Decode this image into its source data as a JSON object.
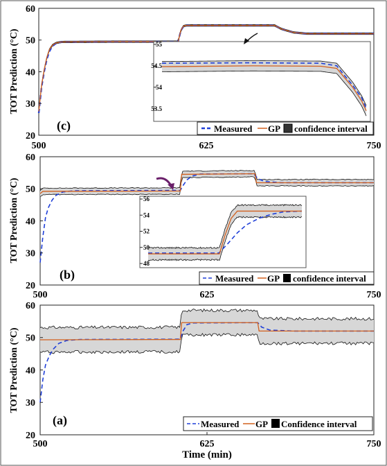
{
  "figure": {
    "border_color": "#555555"
  },
  "colors": {
    "measured": "#1f3fd8",
    "gp": "#d2601e",
    "band": "#d7d7d7",
    "band_edge": "#111111",
    "zoom_arrow_c": "#111111",
    "zoom_arrow_b": "#6a1f6a"
  },
  "chart_data": [
    {
      "type": "line",
      "panel_label": "(c)",
      "ylabel": "TOT Prediction (°C)",
      "xlabel": "",
      "xlim": [
        500,
        750
      ],
      "ylim": [
        20,
        60
      ],
      "xticks": [
        "500",
        "625",
        "750"
      ],
      "yticks": [
        "20",
        "30",
        "40",
        "50",
        "60"
      ],
      "legend": {
        "placement": "bottom-right",
        "entries": [
          "Measured",
          "GP",
          "confidence interval"
        ]
      },
      "grid": false,
      "series": [
        {
          "name": "Measured",
          "style": "dashed",
          "points": [
            [
              500,
              27
            ],
            [
              501,
              31
            ],
            [
              502,
              35
            ],
            [
              504,
              40
            ],
            [
              506,
              44
            ],
            [
              508,
              46.5
            ],
            [
              510,
              48
            ],
            [
              513,
              49
            ],
            [
              517,
              49.4
            ],
            [
              560,
              49.5
            ],
            [
              604,
              49.5
            ],
            [
              606,
              53
            ],
            [
              608,
              54.3
            ],
            [
              610,
              54.6
            ],
            [
              676,
              54.6
            ],
            [
              681,
              53.5
            ],
            [
              690,
              52.4
            ],
            [
              700,
              52
            ],
            [
              750,
              52
            ]
          ]
        },
        {
          "name": "GP",
          "style": "solid",
          "points": [
            [
              500,
              27.5
            ],
            [
              501,
              31.5
            ],
            [
              502,
              35.5
            ],
            [
              504,
              40.5
            ],
            [
              506,
              44.5
            ],
            [
              508,
              47
            ],
            [
              510,
              48.3
            ],
            [
              513,
              49.1
            ],
            [
              517,
              49.4
            ],
            [
              560,
              49.5
            ],
            [
              604,
              49.5
            ],
            [
              606,
              53.1
            ],
            [
              608,
              54.4
            ],
            [
              610,
              54.6
            ],
            [
              676,
              54.6
            ],
            [
              681,
              53.5
            ],
            [
              690,
              52.4
            ],
            [
              700,
              52
            ],
            [
              750,
              52
            ]
          ]
        }
      ],
      "confidence_band_halfwidth": 0.25,
      "inset": {
        "xlim": [
          600,
          690
        ],
        "ylim": [
          53.3,
          55
        ],
        "yticks": [
          "53.5",
          "54",
          "54.5",
          "55"
        ],
        "series": [
          {
            "name": "Measured",
            "style": "dashed",
            "points": [
              [
                600,
                54.56
              ],
              [
                640,
                54.57
              ],
              [
                670,
                54.56
              ],
              [
                677,
                54.5
              ],
              [
                680,
                54.3
              ],
              [
                684,
                54.05
              ],
              [
                688,
                53.75
              ],
              [
                690,
                53.5
              ]
            ]
          },
          {
            "name": "GP",
            "style": "solid",
            "points": [
              [
                600,
                54.48
              ],
              [
                640,
                54.5
              ],
              [
                670,
                54.49
              ],
              [
                677,
                54.44
              ],
              [
                680,
                54.25
              ],
              [
                684,
                54.0
              ],
              [
                688,
                53.68
              ],
              [
                690,
                53.45
              ]
            ]
          }
        ],
        "band_halfwidth": 0.12
      }
    },
    {
      "type": "line",
      "panel_label": "(b)",
      "ylabel": "TOT Prediction (°C)",
      "xlabel": "",
      "xlim": [
        500,
        750
      ],
      "ylim": [
        20,
        60
      ],
      "xticks": [
        "500",
        "625",
        "750"
      ],
      "yticks": [
        "20",
        "30",
        "40",
        "50",
        "60"
      ],
      "legend": {
        "placement": "bottom-right",
        "entries": [
          "Measured",
          "GP",
          "confidence interval"
        ]
      },
      "grid": false,
      "series": [
        {
          "name": "Measured",
          "style": "dashed",
          "points": [
            [
              500,
              27
            ],
            [
              502,
              35
            ],
            [
              504,
              41
            ],
            [
              506,
              44
            ],
            [
              509,
              46.5
            ],
            [
              512,
              48
            ],
            [
              517,
              49
            ],
            [
              525,
              49.4
            ],
            [
              605,
              49.5
            ],
            [
              607,
              51
            ],
            [
              610,
              52.8
            ],
            [
              614,
              54
            ],
            [
              620,
              54.6
            ],
            [
              660,
              54.7
            ],
            [
              663,
              53.2
            ],
            [
              668,
              52.3
            ],
            [
              680,
              51.9
            ],
            [
              750,
              51.9
            ]
          ]
        },
        {
          "name": "GP",
          "style": "solid",
          "points": [
            [
              500,
              48.5
            ],
            [
              502,
              49.2
            ],
            [
              605,
              49.3
            ],
            [
              606,
              54.5
            ],
            [
              661,
              54.7
            ],
            [
              662,
              51.9
            ],
            [
              750,
              51.9
            ]
          ]
        }
      ],
      "confidence_band_halfwidth": 1.0,
      "inset": {
        "xlim": [
          600,
          625
        ],
        "ylim": [
          48,
          56
        ],
        "yticks": [
          "48",
          "50",
          "52",
          "54",
          "56"
        ],
        "series": [
          {
            "name": "Measured",
            "style": "dashed",
            "points": [
              [
                600,
                49.3
              ],
              [
                611.5,
                49.3
              ],
              [
                613,
                50.5
              ],
              [
                614.5,
                51.8
              ],
              [
                616,
                52.8
              ],
              [
                618,
                53.6
              ],
              [
                620,
                54.1
              ],
              [
                622,
                54.4
              ],
              [
                625,
                54.5
              ]
            ]
          },
          {
            "name": "GP",
            "style": "solid",
            "points": [
              [
                600,
                49.2
              ],
              [
                611.6,
                49.2
              ],
              [
                612.5,
                51.5
              ],
              [
                613.5,
                53.6
              ],
              [
                614.5,
                54.5
              ],
              [
                625,
                54.5
              ]
            ]
          }
        ],
        "band_halfwidth": 0.75
      }
    },
    {
      "type": "line",
      "panel_label": "(a)",
      "ylabel": "TOT Prediction (°C)",
      "xlabel": "Time (min)",
      "xlim": [
        500,
        750
      ],
      "ylim": [
        20,
        60
      ],
      "xticks": [
        "500",
        "625",
        "750"
      ],
      "yticks": [
        "20",
        "30",
        "40",
        "50",
        "60"
      ],
      "legend": {
        "placement": "bottom-right",
        "entries": [
          "Measured",
          "GP",
          "Confidence interval"
        ]
      },
      "grid": false,
      "series": [
        {
          "name": "Measured",
          "style": "dashed",
          "points": [
            [
              500,
              30
            ],
            [
              502,
              37
            ],
            [
              504,
              41.5
            ],
            [
              507,
              44.5
            ],
            [
              510,
              46.5
            ],
            [
              514,
              48.2
            ],
            [
              520,
              49.1
            ],
            [
              530,
              49.4
            ],
            [
              605,
              49.5
            ],
            [
              607,
              52
            ],
            [
              610,
              54
            ],
            [
              615,
              54.5
            ],
            [
              663,
              54.6
            ],
            [
              666,
              53.2
            ],
            [
              672,
              52.3
            ],
            [
              690,
              52
            ],
            [
              750,
              52
            ]
          ]
        },
        {
          "name": "GP",
          "style": "solid",
          "points": [
            [
              500,
              49.3
            ],
            [
              605,
              49.4
            ],
            [
              606,
              54.6
            ],
            [
              663,
              54.6
            ],
            [
              664,
              52
            ],
            [
              750,
              52
            ]
          ]
        }
      ],
      "confidence_band_halfwidth": 3.8
    }
  ]
}
